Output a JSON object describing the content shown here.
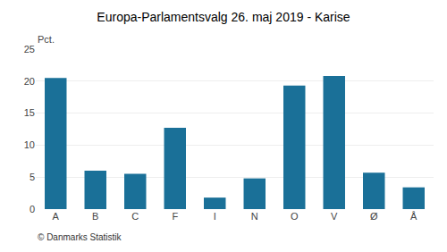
{
  "chart_data": {
    "type": "bar",
    "title": "Europa-Parlamentsvalg 26. maj 2019 - Karise",
    "categories": [
      "A",
      "B",
      "C",
      "F",
      "I",
      "N",
      "O",
      "V",
      "Ø",
      "Å"
    ],
    "values": [
      20.5,
      6.0,
      5.5,
      12.7,
      1.8,
      4.8,
      19.3,
      20.8,
      5.7,
      3.4
    ],
    "color": "#1a7098",
    "ylabel": "Pct.",
    "annotations": [
      "© Danmarks Statistik"
    ],
    "ylim": [
      0,
      25
    ],
    "yticks": [
      0,
      5,
      10,
      15,
      20,
      25
    ],
    "grid": true
  }
}
